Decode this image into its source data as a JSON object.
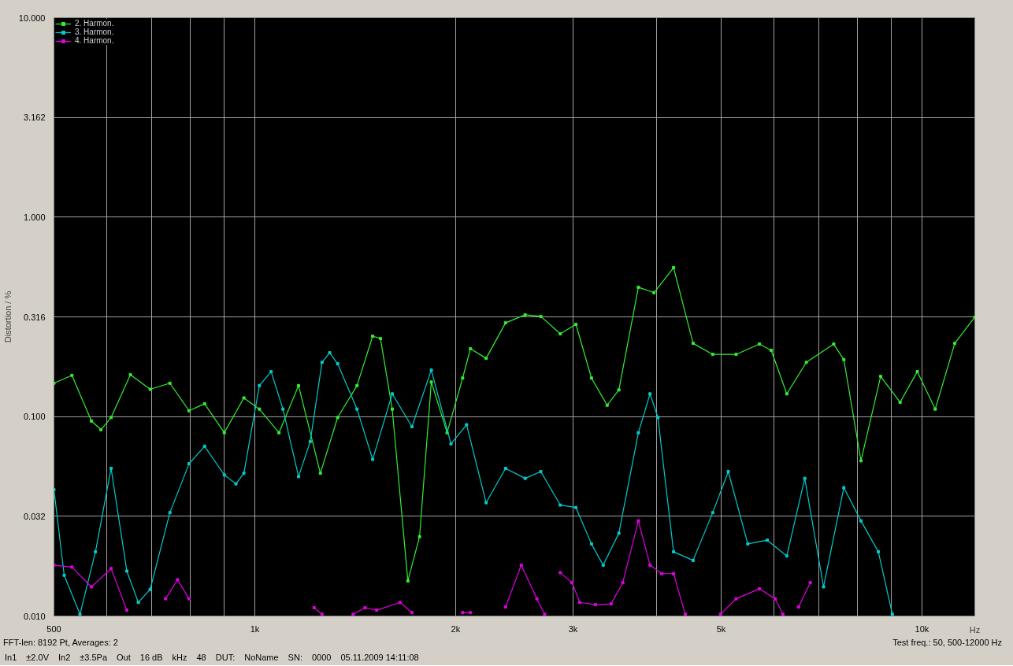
{
  "chart_data": {
    "type": "line",
    "xlabel": "Hz",
    "ylabel": "Distortion / %",
    "xlim": [
      500,
      12000
    ],
    "ylim": [
      0.01,
      10
    ],
    "log": "xy",
    "grid": true,
    "legend": "top left",
    "marker": "square",
    "line_style": "solid",
    "xticks": [
      500,
      {
        "value": 600,
        "label": null
      },
      {
        "value": 700,
        "label": null
      },
      {
        "value": 800,
        "label": null
      },
      {
        "value": 900,
        "label": null
      },
      {
        "value": 1000,
        "label": "1k"
      },
      {
        "value": 2000,
        "label": "2k"
      },
      {
        "value": 3000,
        "label": "3k"
      },
      {
        "value": 4000,
        "label": null
      },
      {
        "value": 5000,
        "label": "5k"
      },
      {
        "value": 6000,
        "label": null
      },
      {
        "value": 7000,
        "label": null
      },
      {
        "value": 8000,
        "label": null
      },
      {
        "value": 9000,
        "label": null
      },
      {
        "value": 10000,
        "label": "10k"
      }
    ],
    "yticks": [
      {
        "value": 0.01,
        "label": "0.010"
      },
      {
        "value": 0.0316,
        "label": "0.032"
      },
      {
        "value": 0.1,
        "label": "0.100"
      },
      {
        "value": 0.316,
        "label": "0.316"
      },
      {
        "value": 1,
        "label": "1.000"
      },
      {
        "value": 3.162,
        "label": "3.162"
      },
      {
        "value": 10,
        "label": "10.000"
      }
    ],
    "series": [
      {
        "name": "2. Harmon.",
        "color": "#33ee33",
        "x": [
          500,
          532,
          569,
          588,
          609,
          651,
          697,
          746,
          797,
          841,
          900,
          963,
          1016,
          1087,
          1163,
          1254,
          1331,
          1423,
          1502,
          1543,
          1607,
          1696,
          1766,
          1839,
          1942,
          2049,
          2105,
          2222,
          2376,
          2542,
          2683,
          2870,
          3029,
          3196,
          3374,
          3513,
          3758,
          3966,
          4243,
          4539,
          4857,
          5265,
          5706,
          5943,
          6272,
          6709,
          7374,
          7637,
          8102,
          8671,
          9273,
          9840,
          10469,
          11199,
          12000
        ],
        "values": [
          0.147,
          0.161,
          0.095,
          0.086,
          0.099,
          0.162,
          0.137,
          0.147,
          0.107,
          0.116,
          0.083,
          0.124,
          0.109,
          0.083,
          0.143,
          0.052,
          0.099,
          0.143,
          0.253,
          0.246,
          0.109,
          0.015,
          0.025,
          0.149,
          0.083,
          0.156,
          0.219,
          0.196,
          0.295,
          0.324,
          0.318,
          0.26,
          0.29,
          0.156,
          0.114,
          0.136,
          0.445,
          0.418,
          0.558,
          0.233,
          0.205,
          0.205,
          0.231,
          0.215,
          0.13,
          0.187,
          0.231,
          0.193,
          0.06,
          0.159,
          0.118,
          0.168,
          0.109,
          0.233,
          0.315
        ]
      },
      {
        "name": "3. Harmon.",
        "color": "#00cccc",
        "x": [
          500,
          518,
          547,
          577,
          609,
          643,
          669,
          697,
          746,
          797,
          841,
          900,
          937,
          963,
          1016,
          1058,
          1102,
          1163,
          1211,
          1261,
          1295,
          1331,
          1423,
          1502,
          1607,
          1720,
          1839,
          1968,
          2077,
          2222,
          2376,
          2542,
          2683,
          2870,
          3029,
          3196,
          3328,
          3513,
          3758,
          3912,
          4020,
          4243,
          4539,
          4857,
          5125,
          5482,
          5863,
          6272,
          6673,
          7120,
          7637,
          8102,
          8602,
          9028
        ],
        "values": [
          0.043,
          0.016,
          0.0102,
          0.021,
          0.055,
          0.0168,
          0.0117,
          0.0136,
          0.033,
          0.058,
          0.071,
          0.051,
          0.046,
          0.052,
          0.143,
          0.168,
          0.109,
          0.05,
          0.075,
          0.187,
          0.209,
          0.184,
          0.109,
          0.061,
          0.13,
          0.089,
          0.171,
          0.073,
          0.091,
          0.037,
          0.055,
          0.049,
          0.053,
          0.036,
          0.035,
          0.023,
          0.018,
          0.026,
          0.083,
          0.13,
          0.099,
          0.021,
          0.019,
          0.033,
          0.053,
          0.023,
          0.024,
          0.02,
          0.049,
          0.014,
          0.044,
          0.03,
          0.021,
          0.0102
        ]
      },
      {
        "name": "4. Harmon.",
        "color": "#e000e0",
        "x": [
          500,
          532,
          569,
          609,
          643,
          690,
          735,
          766,
          797,
          1000,
          1227,
          1261,
          1330,
          1404,
          1463,
          1523,
          1651,
          1720,
          1900,
          2049,
          2105,
          2250,
          2376,
          2508,
          2647,
          2719,
          2800,
          2870,
          2988,
          3070,
          3240,
          3420,
          3561,
          3758,
          3912,
          4075,
          4243,
          4418,
          4700,
          4989,
          5265,
          5706,
          6025,
          6189,
          6400,
          6531,
          6801
        ],
        "values": [
          0.018,
          0.0176,
          0.014,
          0.0173,
          0.0107,
          null,
          0.0122,
          0.0152,
          0.0122,
          null,
          0.011,
          0.0102,
          null,
          0.0102,
          0.011,
          0.0107,
          0.0117,
          0.0104,
          null,
          0.0104,
          0.0104,
          null,
          0.0111,
          0.018,
          0.0122,
          0.0102,
          null,
          0.0165,
          0.0147,
          0.0117,
          0.0114,
          0.0115,
          0.0147,
          0.03,
          0.018,
          0.0163,
          0.0163,
          0.0102,
          null,
          0.0102,
          0.0122,
          0.0137,
          0.0122,
          0.0102,
          null,
          0.0111,
          0.0147
        ]
      }
    ],
    "annotations": [
      "FFT-len: 8192 Pt, Averages: 2",
      "Test freq.: 50, 500-12000 Hz",
      "In1",
      "±2.0V",
      "In2",
      "±3.5Pa",
      "Out",
      "16 dB",
      "kHz",
      "48",
      "DUT:",
      "NoName",
      "SN:",
      "0000",
      "05.11.2009 14:11:08"
    ]
  }
}
